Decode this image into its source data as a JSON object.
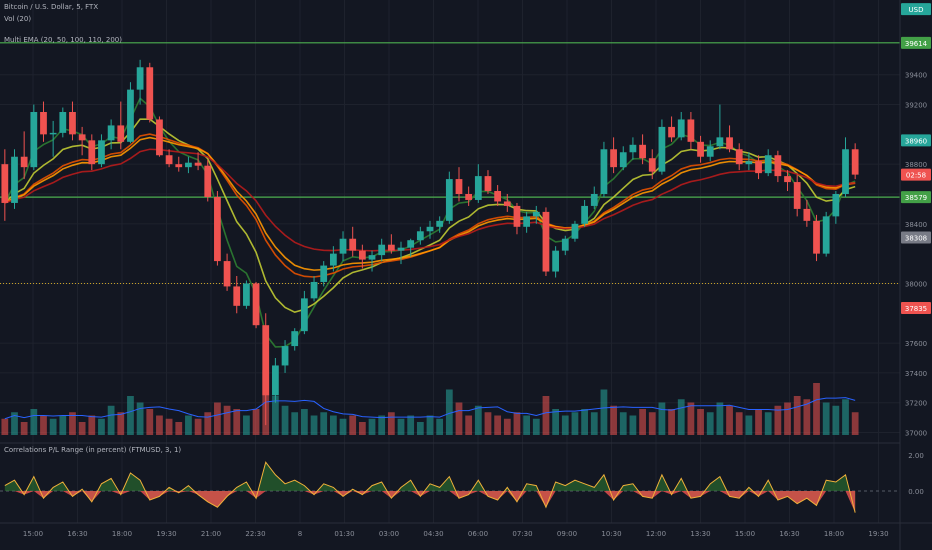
{
  "header": {
    "symbol": "Bitcoin / U.S. Dollar, 5, FTX",
    "vol_label": "Vol (20)",
    "ema_label": "Multi EMA (20, 50, 100, 110, 200)",
    "osc_label": "Correlations P/L Range (in percent) (FTMUSD, 3, 1)"
  },
  "colors": {
    "background": "#131722",
    "grid": "#1e222d",
    "up": "#26a69a",
    "down": "#ef5350",
    "level": "#4caf50",
    "dotted": "#c9a227",
    "ema20": "#2e7d32",
    "ema50": "#c0ca33",
    "ema100": "#e65100",
    "ema110": "#ff9800",
    "ema200": "#b71c1c",
    "vol_ma": "#2962ff"
  },
  "chart_data": {
    "type": "candlestick",
    "y_ticks": [
      "39400",
      "39200",
      "38800",
      "38600",
      "38400",
      "38000",
      "37600",
      "37400",
      "37200",
      "37000"
    ],
    "x_ticks": [
      "15:00",
      "16:30",
      "18:00",
      "19:30",
      "21:00",
      "22:30",
      "8",
      "01:30",
      "03:00",
      "04:30",
      "06:00",
      "07:30",
      "09:00",
      "10:30",
      "12:00",
      "13:30",
      "15:00",
      "16:30",
      "18:00",
      "19:30"
    ],
    "price_tags": [
      {
        "text": "USD",
        "price": 39840,
        "color": "#26a69a",
        "note": "partial tag top"
      },
      {
        "text": "39614",
        "price": 39614,
        "color": "#43a047"
      },
      {
        "text": "38960",
        "price": 38960,
        "color": "#26a69a"
      },
      {
        "text": "02:58",
        "price": 38730,
        "color": "#ef5350"
      },
      {
        "text": "38579",
        "price": 38579,
        "color": "#43a047"
      },
      {
        "text": "38308",
        "price": 38308,
        "color": "#787b86"
      },
      {
        "text": "37835",
        "price": 37835,
        "color": "#ef5350"
      }
    ],
    "levels": [
      39614,
      38579
    ],
    "dotted_level": 38000,
    "osc_ticks": [
      "2.00",
      "0.00"
    ],
    "osc_range": [
      -1.5,
      2.0
    ],
    "price_range": [
      36950,
      39700
    ],
    "candles": [
      [
        38800,
        38900,
        38420,
        38540
      ],
      [
        38540,
        38900,
        38500,
        38850
      ],
      [
        38850,
        39020,
        38700,
        38780
      ],
      [
        38780,
        39200,
        38760,
        39150
      ],
      [
        39150,
        39220,
        38950,
        39000
      ],
      [
        39000,
        39090,
        38850,
        39010
      ],
      [
        39010,
        39180,
        38980,
        39150
      ],
      [
        39150,
        39220,
        38960,
        39000
      ],
      [
        39000,
        39050,
        38860,
        38960
      ],
      [
        38960,
        39000,
        38760,
        38800
      ],
      [
        38800,
        39000,
        38780,
        38960
      ],
      [
        38960,
        39100,
        38900,
        39060
      ],
      [
        39060,
        39220,
        38900,
        38950
      ],
      [
        38950,
        39350,
        38940,
        39300
      ],
      [
        39300,
        39500,
        39200,
        39450
      ],
      [
        39450,
        39480,
        39080,
        39100
      ],
      [
        39100,
        39120,
        38850,
        38860
      ],
      [
        38860,
        38900,
        38780,
        38800
      ],
      [
        38800,
        38850,
        38750,
        38780
      ],
      [
        38780,
        38850,
        38740,
        38810
      ],
      [
        38810,
        38880,
        38760,
        38790
      ],
      [
        38790,
        38830,
        38550,
        38580
      ],
      [
        38580,
        38620,
        38120,
        38150
      ],
      [
        38150,
        38200,
        37950,
        37980
      ],
      [
        37980,
        38050,
        37800,
        37850
      ],
      [
        37850,
        38020,
        37830,
        38000
      ],
      [
        38000,
        38010,
        37700,
        37720
      ],
      [
        37720,
        37800,
        37050,
        37250
      ],
      [
        37250,
        37500,
        37200,
        37450
      ],
      [
        37450,
        37620,
        37400,
        37580
      ],
      [
        37580,
        37700,
        37550,
        37680
      ],
      [
        37680,
        37950,
        37660,
        37900
      ],
      [
        37900,
        38050,
        37880,
        38010
      ],
      [
        38010,
        38150,
        37980,
        38120
      ],
      [
        38120,
        38250,
        38080,
        38200
      ],
      [
        38200,
        38350,
        38150,
        38300
      ],
      [
        38300,
        38380,
        38180,
        38220
      ],
      [
        38220,
        38260,
        38100,
        38160
      ],
      [
        38160,
        38220,
        38080,
        38190
      ],
      [
        38190,
        38300,
        38150,
        38260
      ],
      [
        38260,
        38330,
        38200,
        38220
      ],
      [
        38220,
        38280,
        38130,
        38240
      ],
      [
        38240,
        38300,
        38180,
        38290
      ],
      [
        38290,
        38380,
        38260,
        38350
      ],
      [
        38350,
        38420,
        38300,
        38380
      ],
      [
        38380,
        38450,
        38340,
        38420
      ],
      [
        38420,
        38750,
        38400,
        38700
      ],
      [
        38700,
        38780,
        38550,
        38600
      ],
      [
        38600,
        38650,
        38520,
        38560
      ],
      [
        38560,
        38800,
        38540,
        38720
      ],
      [
        38720,
        38760,
        38600,
        38620
      ],
      [
        38620,
        38660,
        38520,
        38550
      ],
      [
        38550,
        38600,
        38480,
        38520
      ],
      [
        38520,
        38540,
        38330,
        38380
      ],
      [
        38380,
        38480,
        38340,
        38450
      ],
      [
        38450,
        38520,
        38400,
        38480
      ],
      [
        38480,
        38510,
        38050,
        38080
      ],
      [
        38080,
        38250,
        38040,
        38220
      ],
      [
        38220,
        38320,
        38190,
        38300
      ],
      [
        38300,
        38420,
        38280,
        38400
      ],
      [
        38400,
        38560,
        38380,
        38520
      ],
      [
        38520,
        38650,
        38500,
        38600
      ],
      [
        38600,
        38950,
        38580,
        38900
      ],
      [
        38900,
        38980,
        38740,
        38780
      ],
      [
        38780,
        38920,
        38760,
        38880
      ],
      [
        38880,
        38980,
        38830,
        38930
      ],
      [
        38930,
        39000,
        38800,
        38840
      ],
      [
        38840,
        38900,
        38700,
        38750
      ],
      [
        38750,
        39100,
        38730,
        39050
      ],
      [
        39050,
        39120,
        38950,
        38980
      ],
      [
        38980,
        39150,
        38960,
        39100
      ],
      [
        39100,
        39150,
        38900,
        38950
      ],
      [
        38950,
        38990,
        38810,
        38850
      ],
      [
        38850,
        38960,
        38820,
        38920
      ],
      [
        38920,
        39200,
        38900,
        38980
      ],
      [
        38980,
        39060,
        38880,
        38900
      ],
      [
        38900,
        38940,
        38760,
        38800
      ],
      [
        38800,
        38880,
        38760,
        38820
      ],
      [
        38820,
        38860,
        38700,
        38740
      ],
      [
        38740,
        38900,
        38720,
        38860
      ],
      [
        38860,
        38890,
        38680,
        38720
      ],
      [
        38720,
        38760,
        38620,
        38680
      ],
      [
        38680,
        38730,
        38450,
        38500
      ],
      [
        38500,
        38560,
        38380,
        38420
      ],
      [
        38420,
        38460,
        38150,
        38200
      ],
      [
        38200,
        38480,
        38180,
        38450
      ],
      [
        38450,
        38620,
        38400,
        38600
      ],
      [
        38600,
        38980,
        38580,
        38900
      ],
      [
        38900,
        38940,
        38700,
        38730
      ]
    ],
    "volumes": [
      0.25,
      0.35,
      0.2,
      0.4,
      0.3,
      0.25,
      0.3,
      0.35,
      0.2,
      0.3,
      0.25,
      0.45,
      0.35,
      0.6,
      0.5,
      0.4,
      0.3,
      0.25,
      0.2,
      0.3,
      0.25,
      0.35,
      0.5,
      0.45,
      0.4,
      0.3,
      0.4,
      1.0,
      0.6,
      0.45,
      0.35,
      0.4,
      0.3,
      0.35,
      0.3,
      0.25,
      0.3,
      0.2,
      0.25,
      0.3,
      0.35,
      0.25,
      0.3,
      0.2,
      0.3,
      0.25,
      0.7,
      0.5,
      0.3,
      0.45,
      0.35,
      0.3,
      0.25,
      0.35,
      0.3,
      0.25,
      0.6,
      0.4,
      0.3,
      0.35,
      0.4,
      0.35,
      0.7,
      0.45,
      0.35,
      0.3,
      0.4,
      0.35,
      0.5,
      0.4,
      0.55,
      0.5,
      0.4,
      0.35,
      0.5,
      0.45,
      0.35,
      0.3,
      0.4,
      0.35,
      0.45,
      0.5,
      0.6,
      0.55,
      0.8,
      0.5,
      0.45,
      0.55,
      0.35
    ],
    "oscillator": [
      0.3,
      0.6,
      -0.2,
      0.8,
      -0.4,
      0.2,
      0.5,
      -0.3,
      0.1,
      -0.6,
      0.4,
      0.7,
      -0.2,
      1.0,
      0.6,
      -0.5,
      -0.3,
      0.2,
      -0.1,
      0.3,
      -0.2,
      -0.6,
      -0.9,
      -0.3,
      0.2,
      0.5,
      -0.4,
      1.6,
      0.9,
      0.4,
      0.6,
      0.3,
      -0.2,
      0.4,
      0.2,
      -0.3,
      0.1,
      -0.2,
      0.3,
      0.5,
      -0.4,
      0.2,
      0.6,
      -0.3,
      0.4,
      0.2,
      0.8,
      -0.4,
      -0.2,
      0.6,
      -0.3,
      -0.5,
      0.2,
      -0.6,
      0.4,
      0.3,
      -0.9,
      0.5,
      0.3,
      0.6,
      0.4,
      0.2,
      0.9,
      -0.5,
      0.3,
      0.4,
      -0.3,
      -0.4,
      0.9,
      -0.2,
      0.7,
      -0.4,
      -0.3,
      0.4,
      0.8,
      -0.3,
      -0.4,
      0.2,
      -0.3,
      0.6,
      -0.5,
      -0.3,
      -0.7,
      -0.4,
      -0.8,
      0.6,
      0.5,
      0.9,
      -1.2
    ]
  }
}
